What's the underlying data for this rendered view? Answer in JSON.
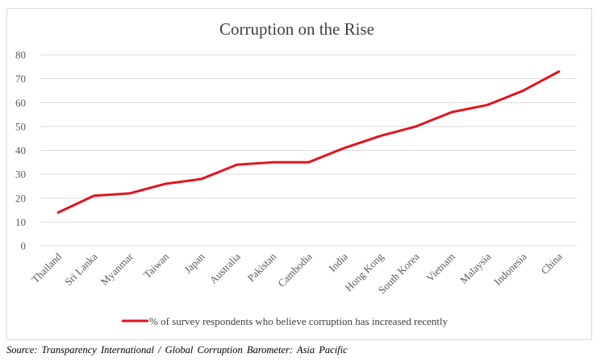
{
  "chart_data": {
    "type": "line",
    "title": "Corruption on the Rise",
    "xlabel": "",
    "ylabel": "",
    "categories": [
      "Thailand",
      "Sri Lanka",
      "Myanmar",
      "Taiwan",
      "Japan",
      "Australia",
      "Pakistan",
      "Cambodia",
      "India",
      "Hong Kong",
      "South Korea",
      "Vietnam",
      "Malaysia",
      "Indonesia",
      "China"
    ],
    "series": [
      {
        "name": "% of survey respondents who believe corruption has increased recently",
        "values": [
          14,
          21,
          22,
          26,
          28,
          34,
          35,
          35,
          41,
          46,
          50,
          56,
          59,
          65,
          73
        ],
        "color": "#e0141e"
      }
    ],
    "ylim": [
      0,
      80
    ],
    "yticks": [
      "0",
      "10",
      "20",
      "30",
      "40",
      "50",
      "60",
      "70",
      "80"
    ],
    "grid": true,
    "legend": "bottom"
  },
  "source": "Source: Transparency International / Global Corruption Barometer: Asia Pacific"
}
